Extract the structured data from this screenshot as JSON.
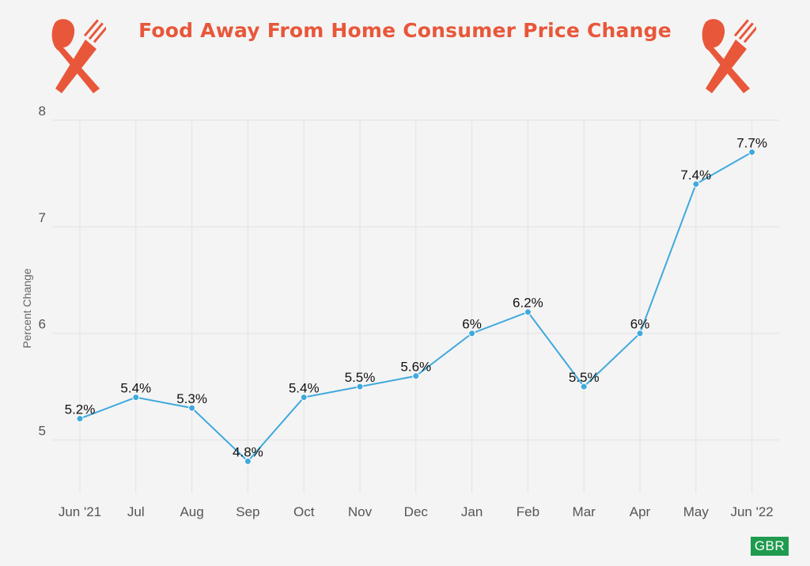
{
  "title": "Food Away From Home Consumer Price Change",
  "badge": "GBR",
  "colors": {
    "title": "#e8573a",
    "line": "#3fa9dd",
    "icon": "#e8573a",
    "badge": "#1e9b4f"
  },
  "icons": {
    "left": "spoon-fork-icon",
    "right": "spoon-fork-icon"
  },
  "chart_data": {
    "type": "line",
    "title": "Food Away From Home Consumer Price Change",
    "xlabel": "",
    "ylabel": "Percent Change",
    "categories": [
      "Jun '21",
      "Jul",
      "Aug",
      "Sep",
      "Oct",
      "Nov",
      "Dec",
      "Jan",
      "Feb",
      "Mar",
      "Apr",
      "May",
      "Jun '22"
    ],
    "values": [
      5.2,
      5.4,
      5.3,
      4.8,
      5.4,
      5.5,
      5.6,
      6,
      6.2,
      5.5,
      6,
      7.4,
      7.7
    ],
    "labels": [
      "5.2%",
      "5.4%",
      "5.3%",
      "4.8%",
      "5.4%",
      "5.5%",
      "5.6%",
      "6%",
      "6.2%",
      "5.5%",
      "6%",
      "7.4%",
      "7.7%"
    ],
    "yticks": [
      5,
      6,
      7,
      8
    ],
    "ylim": [
      4.5,
      8
    ],
    "grid": true,
    "legend": "none"
  }
}
